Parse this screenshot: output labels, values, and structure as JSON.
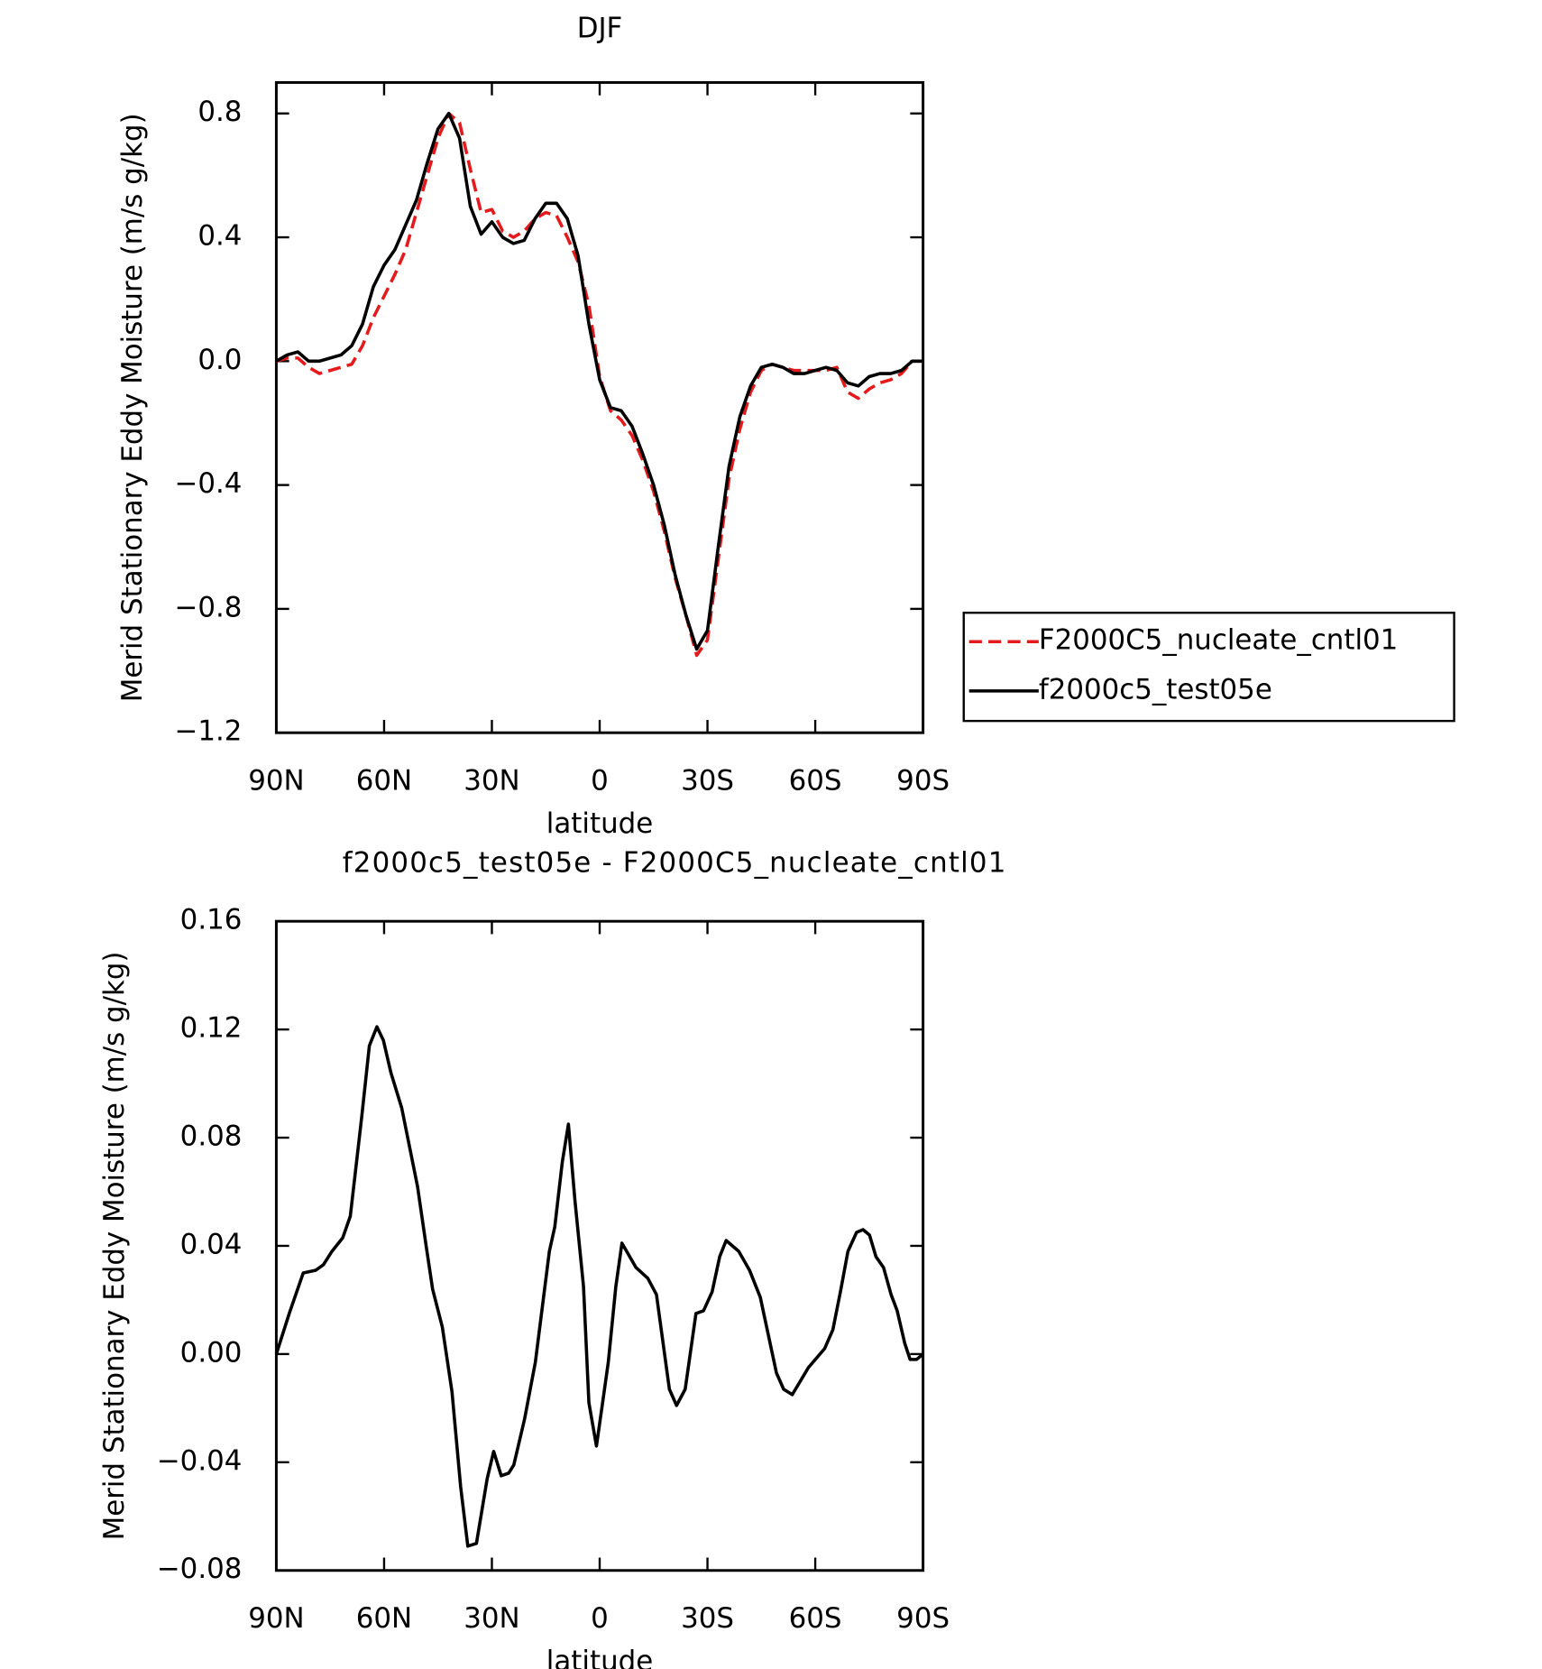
{
  "chart_data": [
    {
      "type": "line",
      "title": "DJF",
      "xlabel": "latitude",
      "ylabel": "Merid Stationary Eddy Moisture (m/s g/kg)",
      "x": [
        90,
        87,
        84,
        81,
        78,
        75,
        72,
        69,
        66,
        63,
        60,
        57,
        54,
        51,
        48,
        45,
        42,
        39,
        36,
        33,
        30,
        27,
        24,
        21,
        18,
        15,
        12,
        9,
        6,
        3,
        0,
        -3,
        -6,
        -9,
        -12,
        -15,
        -18,
        -21,
        -24,
        -27,
        -30,
        -33,
        -36,
        -39,
        -42,
        -45,
        -48,
        -51,
        -54,
        -57,
        -60,
        -63,
        -66,
        -69,
        -72,
        -75,
        -78,
        -81,
        -84,
        -87,
        -90
      ],
      "series": [
        {
          "name": "F2000C5_nucleate_cntl01",
          "color": "#e41a1c",
          "dashed": true,
          "values": [
            0.0,
            0.01,
            0.01,
            -0.02,
            -0.04,
            -0.03,
            -0.02,
            -0.01,
            0.05,
            0.14,
            0.21,
            0.28,
            0.36,
            0.48,
            0.6,
            0.72,
            0.8,
            0.77,
            0.62,
            0.48,
            0.49,
            0.42,
            0.4,
            0.42,
            0.46,
            0.48,
            0.47,
            0.4,
            0.32,
            0.18,
            -0.05,
            -0.16,
            -0.19,
            -0.24,
            -0.32,
            -0.42,
            -0.55,
            -0.7,
            -0.82,
            -0.95,
            -0.9,
            -0.64,
            -0.38,
            -0.22,
            -0.1,
            -0.03,
            -0.01,
            -0.02,
            -0.03,
            -0.03,
            -0.03,
            -0.03,
            -0.02,
            -0.1,
            -0.12,
            -0.09,
            -0.07,
            -0.06,
            -0.04,
            0.0,
            0.0
          ]
        },
        {
          "name": "f2000c5_test05e",
          "color": "#000000",
          "dashed": false,
          "values": [
            0.0,
            0.02,
            0.03,
            0.0,
            0.0,
            0.01,
            0.02,
            0.05,
            0.12,
            0.24,
            0.31,
            0.36,
            0.44,
            0.52,
            0.64,
            0.75,
            0.8,
            0.72,
            0.5,
            0.41,
            0.45,
            0.4,
            0.38,
            0.39,
            0.46,
            0.51,
            0.51,
            0.46,
            0.34,
            0.12,
            -0.06,
            -0.15,
            -0.16,
            -0.21,
            -0.3,
            -0.4,
            -0.53,
            -0.69,
            -0.82,
            -0.93,
            -0.87,
            -0.6,
            -0.34,
            -0.18,
            -0.08,
            -0.02,
            -0.01,
            -0.02,
            -0.04,
            -0.04,
            -0.03,
            -0.02,
            -0.03,
            -0.07,
            -0.08,
            -0.05,
            -0.04,
            -0.04,
            -0.03,
            0.0,
            0.0
          ]
        }
      ],
      "xlim": [
        90,
        -90
      ],
      "xticks": [
        {
          "value": 90,
          "label": "90N"
        },
        {
          "value": 60,
          "label": "60N"
        },
        {
          "value": 30,
          "label": "30N"
        },
        0,
        {
          "value": -30,
          "label": "30S"
        },
        {
          "value": -60,
          "label": "60S"
        },
        {
          "value": -90,
          "label": "90S"
        }
      ],
      "ylim": [
        -1.2,
        0.9
      ],
      "yticks": [
        {
          "value": -1.2,
          "label": "−1.2"
        },
        {
          "value": -0.8,
          "label": "−0.8"
        },
        {
          "value": -0.4,
          "label": "−0.4"
        },
        {
          "value": 0,
          "label": "0.0"
        },
        0.4,
        0.8
      ]
    },
    {
      "type": "line",
      "title": "f2000c5_test05e - F2000C5_nucleate_cntl01",
      "xlabel": "latitude",
      "ylabel": "Merid Stationary Eddy Moisture (m/s g/kg)",
      "x": [
        90,
        86.4,
        82.5,
        79,
        76.9,
        74.5,
        71.5,
        69.4,
        66.2,
        64.1,
        62,
        60.2,
        58.1,
        55.1,
        50.7,
        48.3,
        46.5,
        43.8,
        41.1,
        38.7,
        36.7,
        34.3,
        31.3,
        29.5,
        27.4,
        25.3,
        23.9,
        20.9,
        17.9,
        14,
        12.5,
        10.4,
        8.7,
        6.9,
        4.5,
        3,
        0.9,
        -0.6,
        -2.4,
        -4.5,
        -6.2,
        -10.1,
        -13.4,
        -15.8,
        -19.4,
        -21.4,
        -23.8,
        -26.8,
        -28.9,
        -31.3,
        -33.4,
        -35.2,
        -38.7,
        -41.7,
        -44.7,
        -49.2,
        -51.2,
        -53.6,
        -58.1,
        -62.6,
        -64.9,
        -67,
        -69.1,
        -71.5,
        -73.3,
        -75.1,
        -76.9,
        -79,
        -81.1,
        -82.8,
        -84.9,
        -86.4,
        -88.2,
        -90
      ],
      "values": [
        0,
        0.015,
        0.03,
        0.031,
        0.033,
        0.038,
        0.043,
        0.051,
        0.088,
        0.114,
        0.121,
        0.116,
        0.104,
        0.091,
        0.062,
        0.04,
        0.024,
        0.01,
        -0.014,
        -0.049,
        -0.071,
        -0.07,
        -0.046,
        -0.036,
        -0.045,
        -0.044,
        -0.041,
        -0.024,
        -0.003,
        0.038,
        0.047,
        0.071,
        0.085,
        0.057,
        0.025,
        -0.018,
        -0.034,
        -0.02,
        -0.003,
        0.025,
        0.041,
        0.032,
        0.028,
        0.022,
        -0.013,
        -0.019,
        -0.013,
        0.015,
        0.016,
        0.023,
        0.036,
        0.042,
        0.038,
        0.031,
        0.021,
        -0.007,
        -0.013,
        -0.015,
        -0.005,
        0.002,
        0.009,
        0.023,
        0.038,
        0.045,
        0.046,
        0.044,
        0.036,
        0.032,
        0.022,
        0.016,
        0.004,
        -0.002,
        -0.002,
        0
      ],
      "color": "#000000",
      "xlim": [
        90,
        -90
      ],
      "xticks": [
        {
          "value": 90,
          "label": "90N"
        },
        {
          "value": 60,
          "label": "60N"
        },
        {
          "value": 30,
          "label": "30N"
        },
        0,
        {
          "value": -30,
          "label": "30S"
        },
        {
          "value": -60,
          "label": "60S"
        },
        {
          "value": -90,
          "label": "90S"
        }
      ],
      "ylim": [
        -0.08,
        0.16
      ],
      "yticks": [
        {
          "value": -0.08,
          "label": "−0.08"
        },
        {
          "value": -0.04,
          "label": "−0.04"
        },
        {
          "value": 0,
          "label": "0.00"
        },
        0.04,
        0.08,
        0.12,
        0.16
      ]
    }
  ]
}
